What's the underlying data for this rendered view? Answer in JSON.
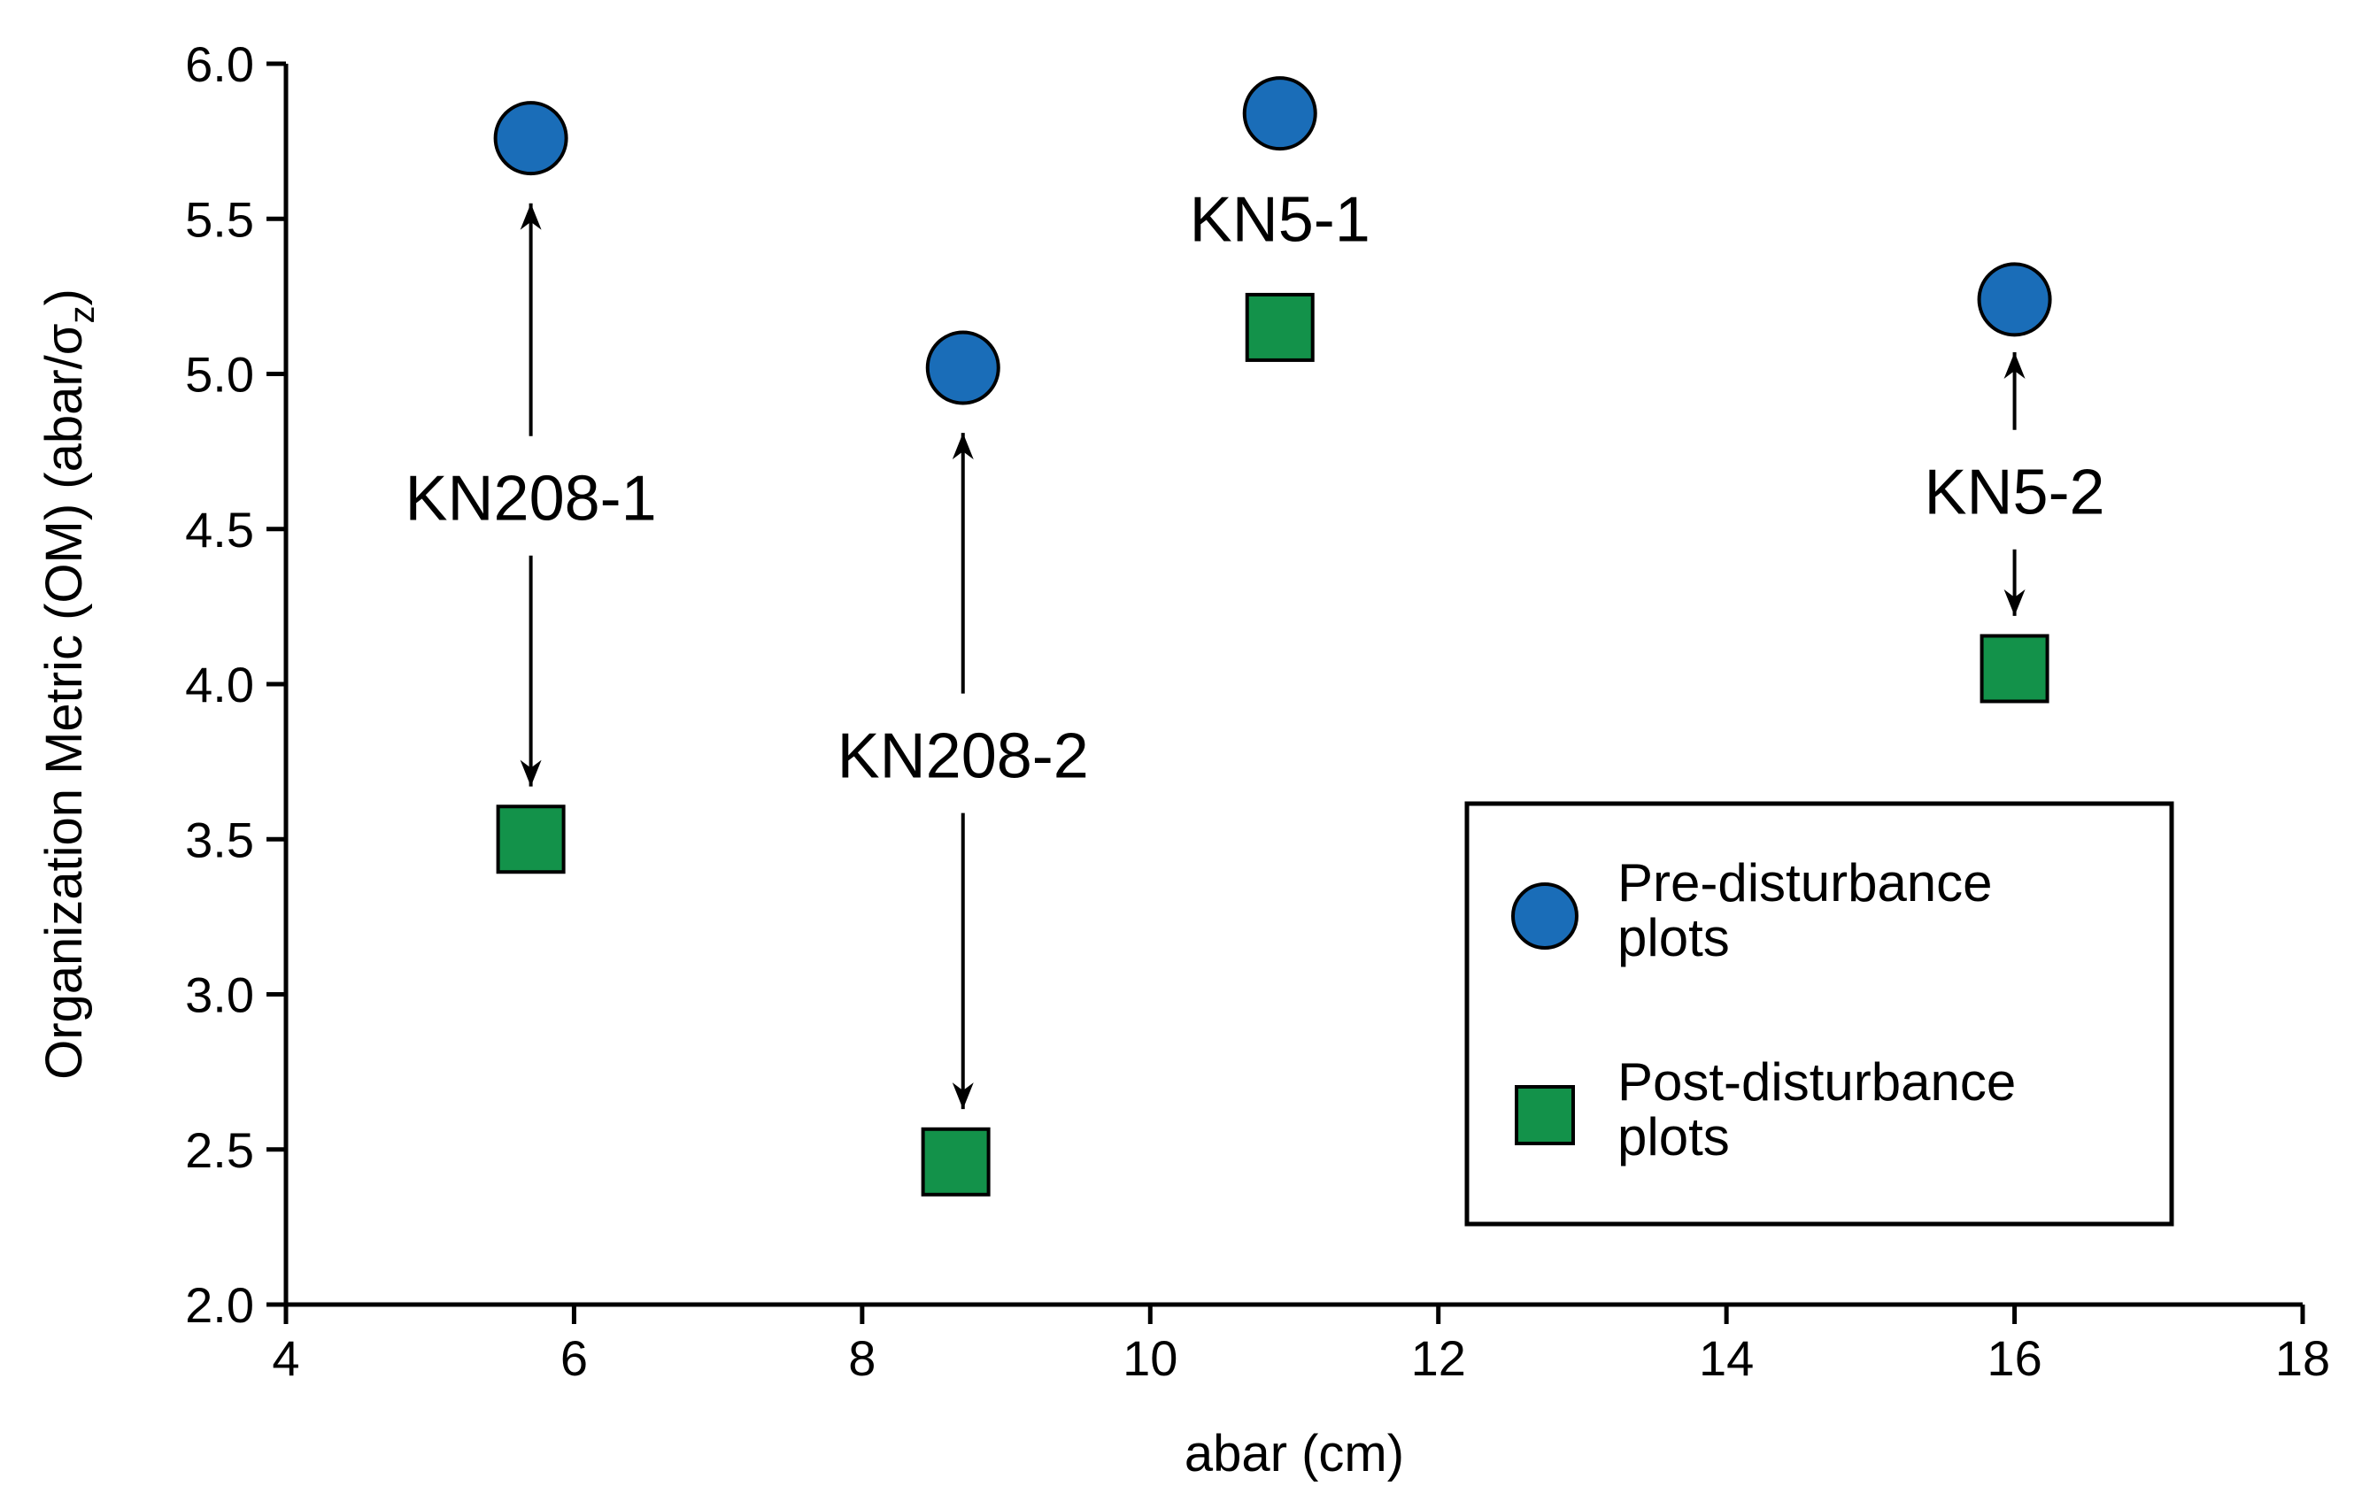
{
  "chart_data": {
    "type": "scatter",
    "xlabel": "abar (cm)",
    "ylabel": "Organization Metric (OM) (abar/σz)",
    "ylabel_main": "Organization Metric (OM) (abar/σ",
    "ylabel_sub": "z",
    "ylabel_close": ")",
    "xlim": [
      4,
      18
    ],
    "ylim": [
      2.0,
      6.0
    ],
    "xticks": [
      "4",
      "6",
      "8",
      "10",
      "12",
      "14",
      "16",
      "18"
    ],
    "yticks": [
      "2.0",
      "2.5",
      "3.0",
      "3.5",
      "4.0",
      "4.5",
      "5.0",
      "5.5",
      "6.0"
    ],
    "grid": false,
    "legend_position": "bottom-right",
    "series": [
      {
        "name": "Pre-disturbance plots",
        "legend_lines": [
          "Pre-disturbance",
          "plots"
        ],
        "marker": "circle",
        "color": "#1A6DB8",
        "points": [
          {
            "x": 5.7,
            "y": 5.76
          },
          {
            "x": 8.7,
            "y": 5.02
          },
          {
            "x": 10.9,
            "y": 5.84
          },
          {
            "x": 16.0,
            "y": 5.24
          }
        ]
      },
      {
        "name": "Post-disturbance plots",
        "legend_lines": [
          "Post-disturbance",
          "plots"
        ],
        "marker": "square",
        "color": "#13924A",
        "points": [
          {
            "x": 5.7,
            "y": 3.5
          },
          {
            "x": 8.65,
            "y": 2.46
          },
          {
            "x": 10.9,
            "y": 5.15
          },
          {
            "x": 16.0,
            "y": 4.05
          }
        ]
      }
    ],
    "annotations": [
      {
        "label": "KN208-1",
        "x": 5.7,
        "label_y": 4.6,
        "arrow_up_to": 5.55,
        "arrow_down_to": 3.67
      },
      {
        "label": "KN208-2",
        "x": 8.7,
        "label_y": 3.77,
        "arrow_up_to": 4.81,
        "arrow_down_to": 2.63
      },
      {
        "label": "KN5-1",
        "x": 10.9,
        "label_y": 5.5
      },
      {
        "label": "KN5-2",
        "x": 16.0,
        "label_y": 4.62,
        "arrow_up_to": 5.07,
        "arrow_down_to": 4.22
      }
    ]
  }
}
